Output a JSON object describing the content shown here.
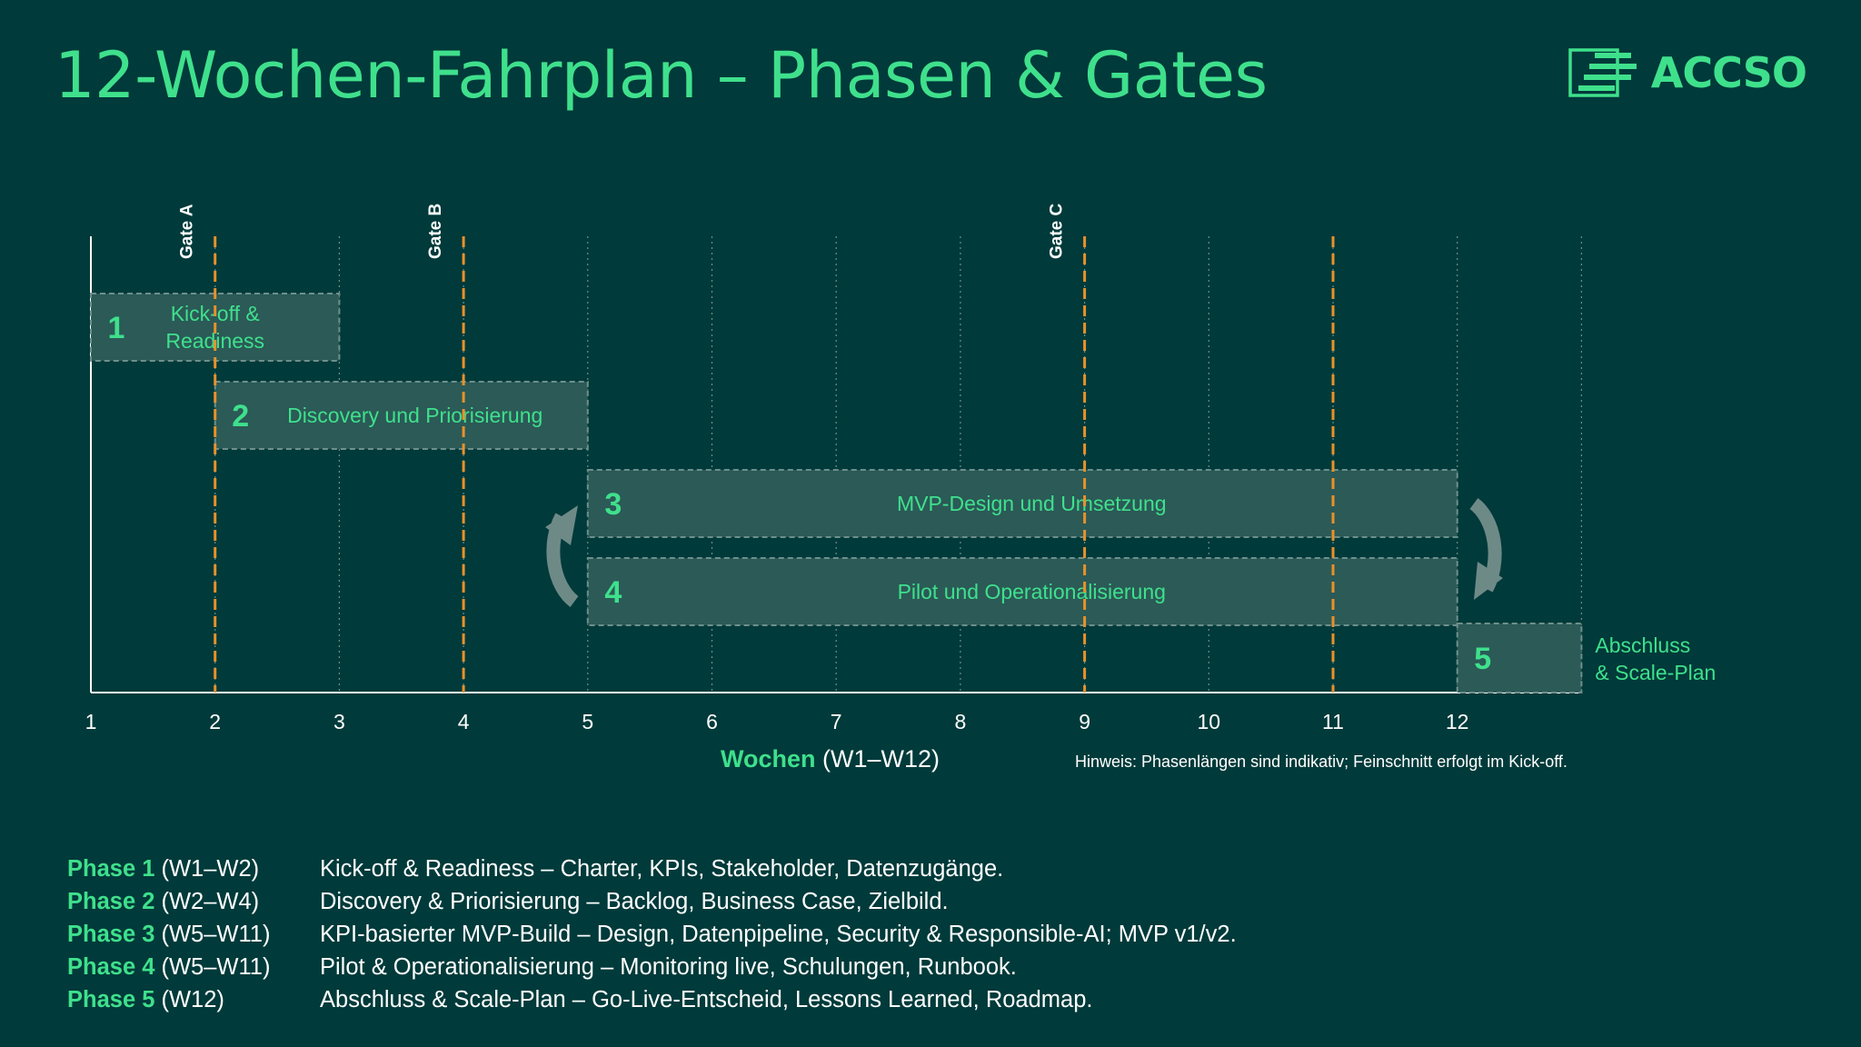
{
  "title": "12-Wochen-Fahrplan – Phasen & Gates",
  "logo": {
    "text": "ACCSO",
    "icon": "accso-logo-icon"
  },
  "colors": {
    "background": "#003a3a",
    "accent": "#3fe08c",
    "gate": "#e8912a",
    "phase_box": "#2b5a57",
    "phase_border": "#6e8f8b",
    "arrow": "#6e8a87",
    "axis": "#ffffff"
  },
  "axis": {
    "ticks": [
      "1",
      "2",
      "3",
      "4",
      "5",
      "6",
      "7",
      "8",
      "9",
      "10",
      "11",
      "12"
    ],
    "label_bold": "Wochen",
    "label_rest": "(W1–W12)",
    "hint": "Hinweis: Phasenlängen sind indikativ; Feinschnitt erfolgt im Kick-off."
  },
  "gates": [
    {
      "label": "Gate A",
      "week": 2
    },
    {
      "label": "Gate B",
      "week": 4
    },
    {
      "label": "Gate C",
      "week": 9
    },
    {
      "label": "",
      "week": 11
    }
  ],
  "phases": [
    {
      "number": "1",
      "label_lines": [
        "Kick-off &",
        "Readiness"
      ],
      "start": 1,
      "end": 3,
      "outside_label": false
    },
    {
      "number": "2",
      "label_lines": [
        "Discovery und Priorisierung"
      ],
      "start": 2,
      "end": 5,
      "outside_label": false
    },
    {
      "number": "3",
      "label_lines": [
        "MVP-Design und Umsetzung"
      ],
      "start": 5,
      "end": 12,
      "outside_label": false
    },
    {
      "number": "4",
      "label_lines": [
        "Pilot und Operationalisierung"
      ],
      "start": 5,
      "end": 12,
      "outside_label": false
    },
    {
      "number": "5",
      "label_lines": [
        "Abschluss",
        "& Scale-Plan"
      ],
      "start": 12,
      "end": 13,
      "outside_label": true
    }
  ],
  "legend": [
    {
      "phase": "Phase 1",
      "weeks": "(W1–W2)",
      "desc": "Kick-off & Readiness – Charter, KPIs, Stakeholder, Datenzugänge."
    },
    {
      "phase": "Phase 2",
      "weeks": "(W2–W4)",
      "desc": "Discovery & Priorisierung – Backlog, Business Case, Zielbild."
    },
    {
      "phase": "Phase 3",
      "weeks": "(W5–W11)",
      "desc": "KPI-basierter MVP-Build – Design, Datenpipeline, Security & Responsible-AI; MVP v1/v2."
    },
    {
      "phase": "Phase 4",
      "weeks": "(W5–W11)",
      "desc": "Pilot & Operationalisierung – Monitoring live, Schulungen, Runbook."
    },
    {
      "phase": "Phase 5",
      "weeks": "(W12)",
      "desc": "Abschluss & Scale-Plan – Go-Live-Entscheid, Lessons Learned, Roadmap."
    }
  ]
}
